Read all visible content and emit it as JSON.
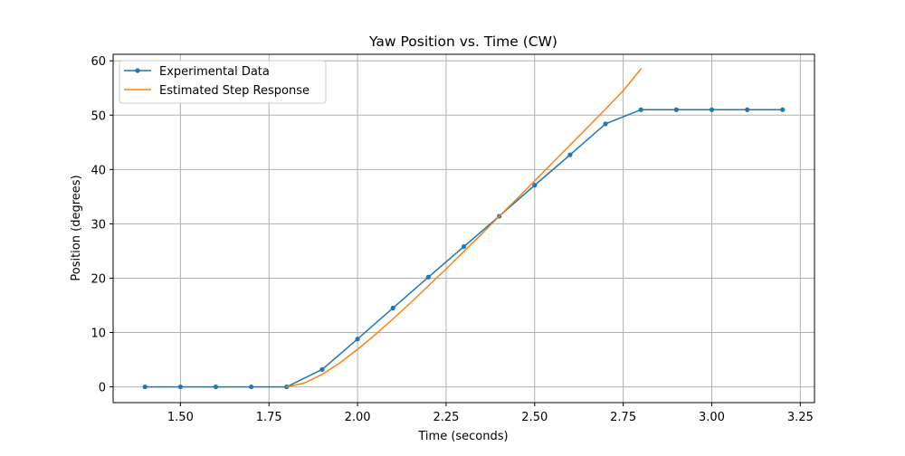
{
  "chart_data": {
    "type": "line",
    "title": "Yaw Position vs. Time (CW)",
    "xlabel": "Time (seconds)",
    "ylabel": "Position (degrees)",
    "xlim": [
      1.31,
      3.29
    ],
    "ylim": [
      -2.9,
      61.2
    ],
    "grid": true,
    "legend_position": "top-left",
    "xticks": [
      1.5,
      1.75,
      2.0,
      2.25,
      2.5,
      2.75,
      3.0,
      3.25
    ],
    "xtick_labels": [
      "1.50",
      "1.75",
      "2.00",
      "2.25",
      "2.50",
      "2.75",
      "3.00",
      "3.25"
    ],
    "yticks": [
      0,
      10,
      20,
      30,
      40,
      50,
      60
    ],
    "ytick_labels": [
      "0",
      "10",
      "20",
      "30",
      "40",
      "50",
      "60"
    ],
    "series": [
      {
        "name": "Experimental Data",
        "color": "#1f77b4",
        "marker": "circle",
        "x": [
          1.4,
          1.5,
          1.6,
          1.7,
          1.8,
          1.9,
          2.0,
          2.1,
          2.2,
          2.3,
          2.4,
          2.5,
          2.6,
          2.7,
          2.8,
          2.9,
          3.0,
          3.1,
          3.2
        ],
        "y": [
          0,
          0,
          0,
          0,
          0,
          3.2,
          8.8,
          14.5,
          20.2,
          25.8,
          31.4,
          37.1,
          42.7,
          48.4,
          51.0,
          51.0,
          51.0,
          51.0,
          51.0
        ]
      },
      {
        "name": "Estimated Step Response",
        "color": "#ff7f0e",
        "marker": "none",
        "x": [
          1.8,
          1.85,
          1.9,
          1.95,
          2.0,
          2.05,
          2.1,
          2.15,
          2.2,
          2.25,
          2.3,
          2.35,
          2.4,
          2.45,
          2.5,
          2.55,
          2.6,
          2.65,
          2.7,
          2.75,
          2.8
        ],
        "y": [
          0,
          0.7,
          2.3,
          4.4,
          6.9,
          9.6,
          12.5,
          15.5,
          18.6,
          21.7,
          24.9,
          28.1,
          31.4,
          34.6,
          37.9,
          41.2,
          44.5,
          47.8,
          51.1,
          54.5,
          58.5
        ]
      }
    ]
  }
}
